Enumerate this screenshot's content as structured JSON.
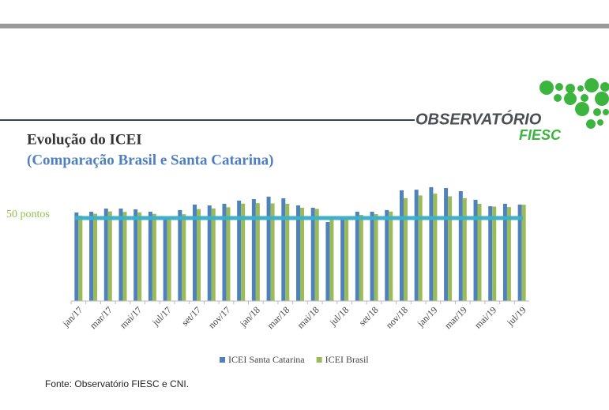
{
  "header": {
    "logo_top": "OBSERVATÓRIO",
    "logo_bottom": "FIESC"
  },
  "chart_data": {
    "type": "bar",
    "title": "Evolução do ICEI",
    "subtitle": "(Comparação Brasil e Santa Catarina)",
    "categories": [
      "jan/17",
      null,
      "mar/17",
      null,
      "mai/17",
      null,
      "jul/17",
      null,
      "set/17",
      null,
      "nov/17",
      null,
      "jan/18",
      null,
      "mar/18",
      null,
      "mai/18",
      null,
      "jul/18",
      null,
      "set/18",
      null,
      "nov/18",
      null,
      "jan/19",
      null,
      "mar/19",
      null,
      "mai/19",
      null,
      "jul/19"
    ],
    "series": [
      {
        "name": "ICEI Santa Catarina",
        "color": "#4f81bd",
        "values": [
          53.3,
          53.8,
          55.7,
          55.7,
          55.2,
          53.8,
          50.0,
          54.8,
          58.1,
          57.6,
          58.6,
          60.5,
          61.4,
          62.9,
          61.9,
          57.6,
          56.2,
          47.6,
          49.5,
          53.8,
          53.8,
          54.8,
          66.7,
          67.1,
          68.6,
          68.1,
          66.2,
          61.0,
          57.1,
          58.6,
          58.1
        ]
      },
      {
        "name": "ICEI Brasil",
        "color": "#9bbb59",
        "values": [
          51.5,
          52.6,
          54.0,
          53.7,
          53.4,
          52.5,
          49.0,
          52.3,
          55.4,
          55.8,
          56.5,
          58.7,
          59.0,
          58.8,
          58.6,
          56.2,
          55.5,
          49.6,
          50.1,
          51.9,
          52.4,
          53.9,
          62.0,
          63.6,
          64.7,
          63.1,
          62.0,
          58.6,
          56.9,
          56.6,
          58.0
        ]
      }
    ],
    "reference_line": {
      "value": 50,
      "label": "50 pontos",
      "color": "#3fb1c6"
    },
    "ylim": [
      0,
      70
    ],
    "legend": "bottom"
  },
  "footer": {
    "source": "Fonte: Observatório FIESC e CNI."
  }
}
